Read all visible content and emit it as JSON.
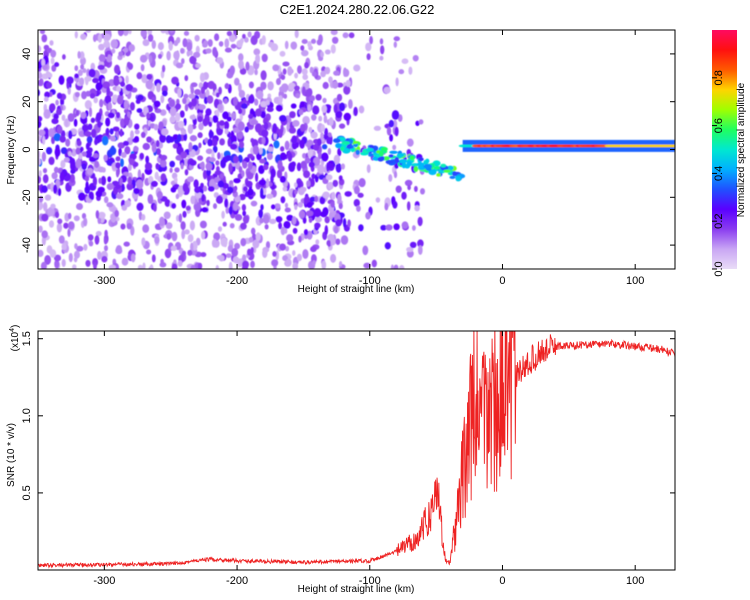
{
  "title": "C2E1.2024.280.22.06.G22",
  "colors": {
    "snr_line": "#ee2222",
    "colormap": [
      "#e9dcf7",
      "#c9a6f4",
      "#8a3cf0",
      "#5a00ff",
      "#2050ff",
      "#00b0ff",
      "#00e8d0",
      "#20ff60",
      "#a0ff00",
      "#ffd400",
      "#ff5a00",
      "#ff1010",
      "#ff0a60"
    ]
  },
  "chart_data": [
    {
      "id": "spectrogram",
      "type": "heatmap",
      "xlabel": "Height of straight line (km)",
      "ylabel": "Frequency (Hz)",
      "xlim": [
        -350,
        130
      ],
      "ylim": [
        -50,
        50
      ],
      "xticks": [
        -300,
        -200,
        -100,
        0,
        100
      ],
      "yticks": [
        -40,
        -20,
        0,
        20,
        40
      ],
      "colorbar": {
        "label": "Normalized spectral amplitude",
        "range": [
          0,
          1
        ],
        "ticks": [
          0.0,
          0.2,
          0.4,
          0.6,
          0.8
        ]
      },
      "features": [
        {
          "x": [
            -350,
            -120
          ],
          "freq": [
            -50,
            50
          ],
          "amplitude": 0.15,
          "kind": "noise"
        },
        {
          "x": [
            -120,
            -30
          ],
          "freq": [
            -15,
            5
          ],
          "amplitude": 0.45,
          "kind": "descending-trace"
        },
        {
          "x": [
            -30,
            130
          ],
          "freq": [
            1,
            2
          ],
          "amplitude": 0.95,
          "kind": "carrier-line"
        }
      ]
    },
    {
      "id": "snr",
      "type": "line",
      "xlabel": "Height of straight line (km)",
      "ylabel": "SNR (10 * v/v)",
      "ylabel_scale": "(x10",
      "ylabel_scale_exp": "4",
      "ylabel_scale_close": ")",
      "xlim": [
        -350,
        130
      ],
      "ylim": [
        0,
        15500
      ],
      "xticks": [
        -300,
        -200,
        -100,
        0,
        100
      ],
      "yticks": [
        5000,
        10000,
        15000
      ],
      "yticklabels": [
        "0.5",
        "1.0",
        "1.5"
      ],
      "series": [
        {
          "x": [
            -350,
            -300,
            -250,
            -220,
            -200,
            -150,
            -100,
            -80,
            -65,
            -55,
            -48,
            -45,
            -43,
            -40,
            -35,
            -30,
            -25,
            -20,
            -15,
            -10,
            -5,
            0,
            10,
            20,
            30,
            40,
            60,
            80,
            100,
            120,
            130
          ],
          "y": [
            300,
            350,
            400,
            700,
            600,
            500,
            600,
            1200,
            2000,
            3500,
            5500,
            1500,
            800,
            500,
            3000,
            6000,
            9000,
            11000,
            9500,
            10500,
            11000,
            11500,
            12500,
            13500,
            14200,
            14500,
            14600,
            14700,
            14500,
            14300,
            14000
          ]
        }
      ]
    }
  ]
}
